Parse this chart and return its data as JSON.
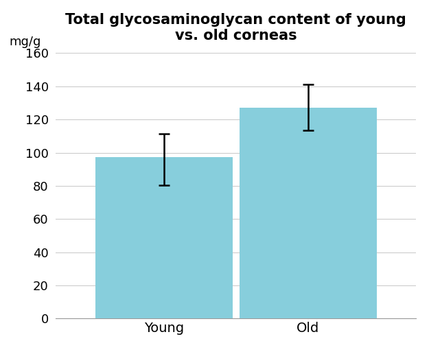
{
  "title": "Total glycosaminoglycan content of young\nvs. old corneas",
  "ylabel": "mg/g",
  "categories": [
    "Young",
    "Old"
  ],
  "values": [
    97.5,
    127.0
  ],
  "errors_upper": [
    14.0,
    14.0
  ],
  "errors_lower": [
    17.0,
    13.5
  ],
  "bar_color": "#87CEDC",
  "bar_edge_color": "#87CEDC",
  "ylim": [
    0,
    160
  ],
  "yticks": [
    0,
    20,
    40,
    60,
    80,
    100,
    120,
    140,
    160
  ],
  "title_fontsize": 15,
  "tick_fontsize": 13,
  "ylabel_fontsize": 13,
  "xlabel_fontsize": 14,
  "bar_width": 0.38,
  "figsize": [
    6.25,
    5.16
  ],
  "dpi": 100,
  "x_positions": [
    0.3,
    0.7
  ],
  "xlim": [
    0.0,
    1.0
  ]
}
